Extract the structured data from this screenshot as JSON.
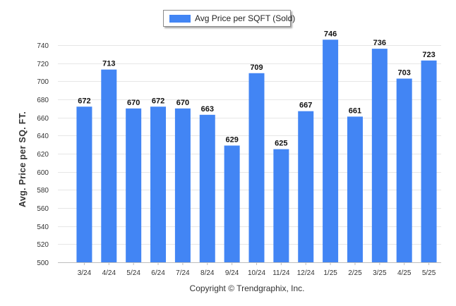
{
  "chart_data": {
    "type": "bar",
    "title": "",
    "xlabel": "",
    "ylabel": "Avg. Price per SQ. FT.",
    "ylim": [
      500,
      750
    ],
    "yticks": [
      500,
      520,
      540,
      560,
      580,
      600,
      620,
      640,
      660,
      680,
      700,
      720,
      740
    ],
    "grid": true,
    "legend": "top-center",
    "categories": [
      "3/24",
      "4/24",
      "5/24",
      "6/24",
      "7/24",
      "8/24",
      "9/24",
      "10/24",
      "11/24",
      "12/24",
      "1/25",
      "2/25",
      "3/25",
      "4/25",
      "5/25"
    ],
    "series": [
      {
        "name": "Avg Price per SQFT (Sold)",
        "color": "#4285f4",
        "values": [
          672,
          713,
          670,
          672,
          670,
          663,
          629,
          709,
          625,
          667,
          746,
          661,
          736,
          703,
          723
        ]
      }
    ]
  },
  "footer": "Copyright © Trendgraphix, Inc."
}
